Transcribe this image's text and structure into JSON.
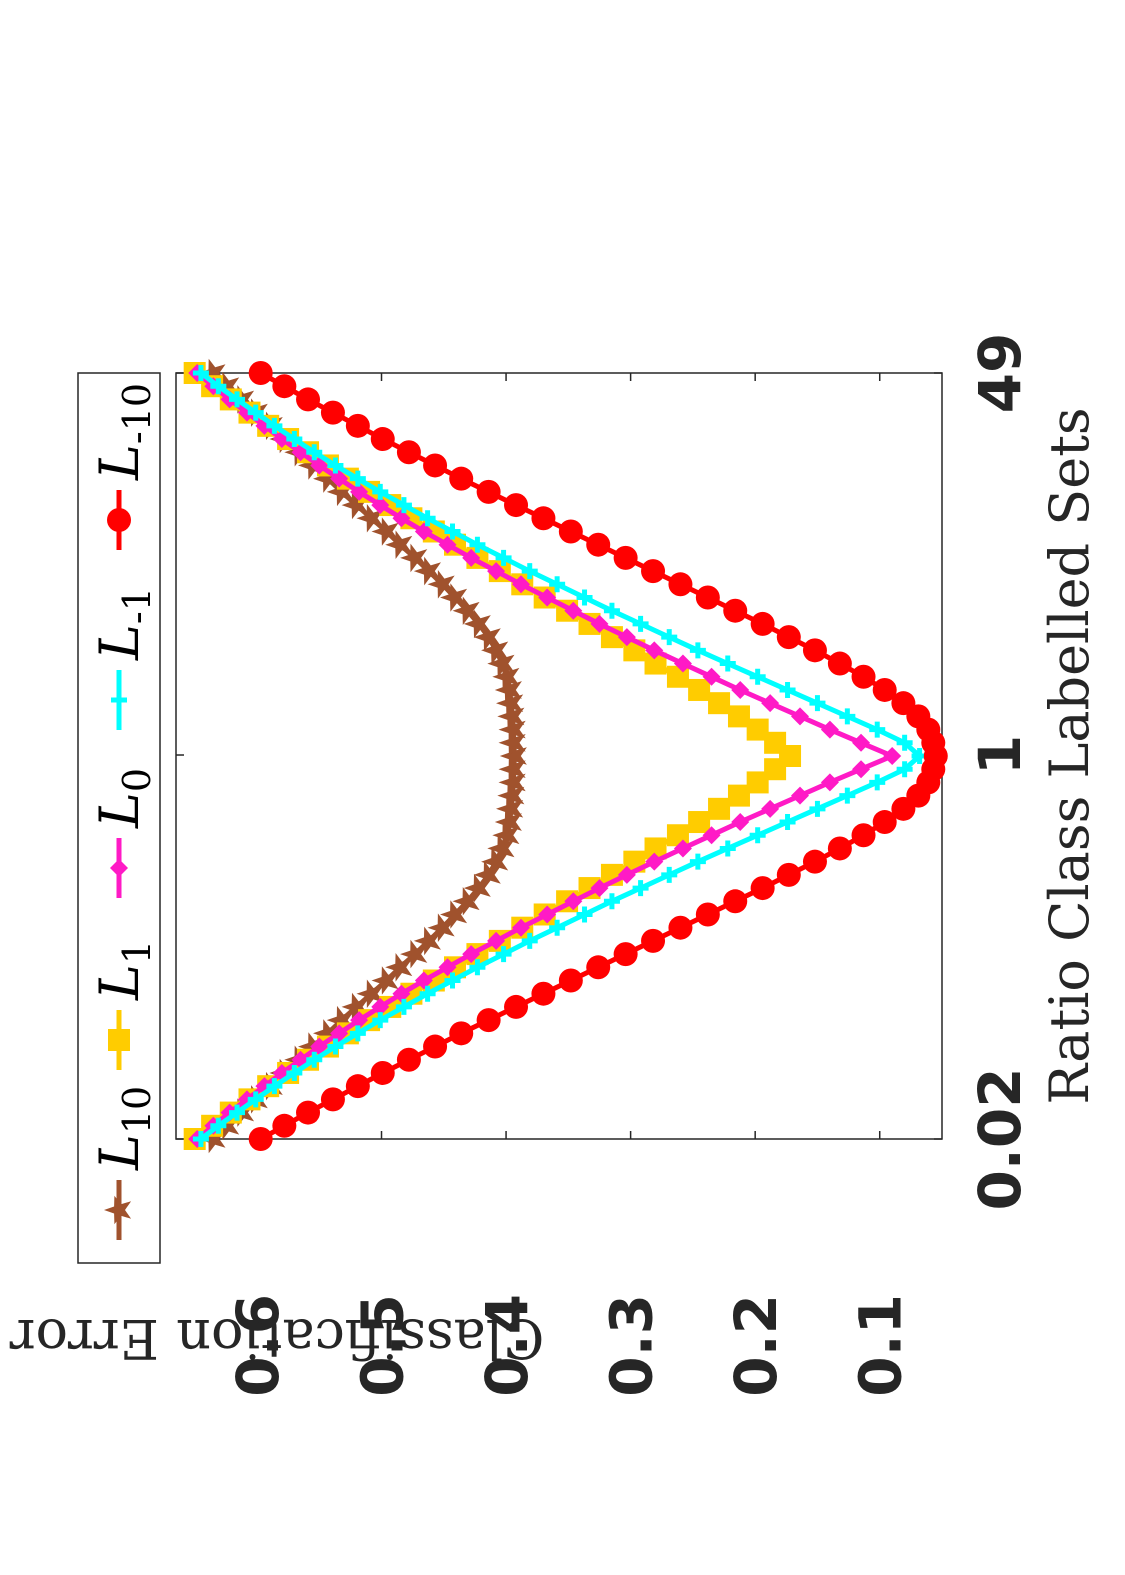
{
  "chart_data": {
    "type": "line",
    "xlabel": "Ratio Class Labelled Sets",
    "ylabel": "Classification Error",
    "x_scale": "log",
    "xlim": [
      0.02,
      49
    ],
    "ylim": [
      0.05,
      0.665
    ],
    "x_ticks": [
      {
        "value": 0.02,
        "label": "0.02"
      },
      {
        "value": 1,
        "label": "1"
      },
      {
        "value": 49,
        "label": "49"
      }
    ],
    "y_ticks": [
      {
        "value": 0.1,
        "label": "0.1"
      },
      {
        "value": 0.2,
        "label": "0.2"
      },
      {
        "value": 0.3,
        "label": "0.3"
      },
      {
        "value": 0.4,
        "label": "0.4"
      },
      {
        "value": 0.5,
        "label": "0.5"
      },
      {
        "value": 0.6,
        "label": "0.6"
      }
    ],
    "grid": false,
    "legend_position": "top",
    "n_points": 59,
    "series": [
      {
        "name": "L",
        "subscript": "10",
        "color": "#A0522D",
        "marker": "star",
        "values": [
          0.635,
          0.624,
          0.612,
          0.601,
          0.589,
          0.578,
          0.566,
          0.555,
          0.543,
          0.532,
          0.52,
          0.508,
          0.496,
          0.485,
          0.473,
          0.462,
          0.451,
          0.441,
          0.431,
          0.422,
          0.414,
          0.408,
          0.403,
          0.399,
          0.397,
          0.396,
          0.395,
          0.394,
          0.394,
          0.393,
          0.394,
          0.394,
          0.395,
          0.396,
          0.397,
          0.399,
          0.403,
          0.408,
          0.414,
          0.422,
          0.431,
          0.441,
          0.451,
          0.462,
          0.473,
          0.485,
          0.496,
          0.508,
          0.52,
          0.532,
          0.543,
          0.555,
          0.566,
          0.578,
          0.589,
          0.601,
          0.612,
          0.624,
          0.635
        ]
      },
      {
        "name": "L",
        "subscript": "1",
        "color": "#FFCC00",
        "marker": "square",
        "values": [
          0.65,
          0.636,
          0.621,
          0.606,
          0.591,
          0.575,
          0.559,
          0.543,
          0.527,
          0.51,
          0.493,
          0.476,
          0.458,
          0.441,
          0.423,
          0.405,
          0.387,
          0.369,
          0.351,
          0.333,
          0.315,
          0.297,
          0.28,
          0.262,
          0.245,
          0.229,
          0.213,
          0.198,
          0.184,
          0.172,
          0.184,
          0.198,
          0.213,
          0.229,
          0.245,
          0.262,
          0.28,
          0.297,
          0.315,
          0.333,
          0.351,
          0.369,
          0.387,
          0.405,
          0.423,
          0.441,
          0.458,
          0.476,
          0.493,
          0.51,
          0.527,
          0.543,
          0.559,
          0.575,
          0.591,
          0.606,
          0.621,
          0.636,
          0.65
        ]
      },
      {
        "name": "L",
        "subscript": "0",
        "color": "#FF1AC6",
        "marker": "diamond",
        "values": [
          0.648,
          0.635,
          0.622,
          0.608,
          0.594,
          0.58,
          0.565,
          0.55,
          0.534,
          0.518,
          0.501,
          0.484,
          0.466,
          0.447,
          0.428,
          0.408,
          0.388,
          0.367,
          0.346,
          0.325,
          0.303,
          0.281,
          0.258,
          0.235,
          0.212,
          0.188,
          0.164,
          0.14,
          0.115,
          0.09,
          0.115,
          0.14,
          0.164,
          0.188,
          0.212,
          0.235,
          0.258,
          0.281,
          0.303,
          0.325,
          0.346,
          0.367,
          0.388,
          0.408,
          0.428,
          0.447,
          0.466,
          0.484,
          0.501,
          0.518,
          0.534,
          0.55,
          0.565,
          0.58,
          0.594,
          0.608,
          0.622,
          0.635,
          0.648
        ]
      },
      {
        "name": "L",
        "subscript": "-1",
        "color": "#00FFFF",
        "marker": "plus",
        "values": [
          0.645,
          0.631,
          0.616,
          0.601,
          0.586,
          0.57,
          0.554,
          0.537,
          0.519,
          0.501,
          0.482,
          0.463,
          0.443,
          0.423,
          0.402,
          0.381,
          0.359,
          0.337,
          0.315,
          0.292,
          0.269,
          0.246,
          0.222,
          0.198,
          0.174,
          0.15,
          0.126,
          0.102,
          0.08,
          0.068,
          0.08,
          0.102,
          0.126,
          0.15,
          0.174,
          0.198,
          0.222,
          0.246,
          0.269,
          0.292,
          0.315,
          0.337,
          0.359,
          0.381,
          0.402,
          0.423,
          0.443,
          0.463,
          0.482,
          0.501,
          0.519,
          0.537,
          0.554,
          0.57,
          0.586,
          0.601,
          0.616,
          0.631,
          0.645
        ]
      },
      {
        "name": "L",
        "subscript": "-10",
        "color": "#FF0000",
        "marker": "circle",
        "values": [
          0.597,
          0.578,
          0.559,
          0.539,
          0.519,
          0.499,
          0.478,
          0.457,
          0.436,
          0.414,
          0.392,
          0.37,
          0.348,
          0.326,
          0.304,
          0.282,
          0.26,
          0.238,
          0.216,
          0.194,
          0.173,
          0.152,
          0.132,
          0.113,
          0.096,
          0.081,
          0.069,
          0.061,
          0.057,
          0.055,
          0.057,
          0.061,
          0.069,
          0.081,
          0.096,
          0.113,
          0.132,
          0.152,
          0.173,
          0.194,
          0.216,
          0.238,
          0.26,
          0.282,
          0.304,
          0.326,
          0.348,
          0.37,
          0.392,
          0.414,
          0.436,
          0.457,
          0.478,
          0.499,
          0.519,
          0.539,
          0.559,
          0.578,
          0.597
        ]
      }
    ]
  }
}
